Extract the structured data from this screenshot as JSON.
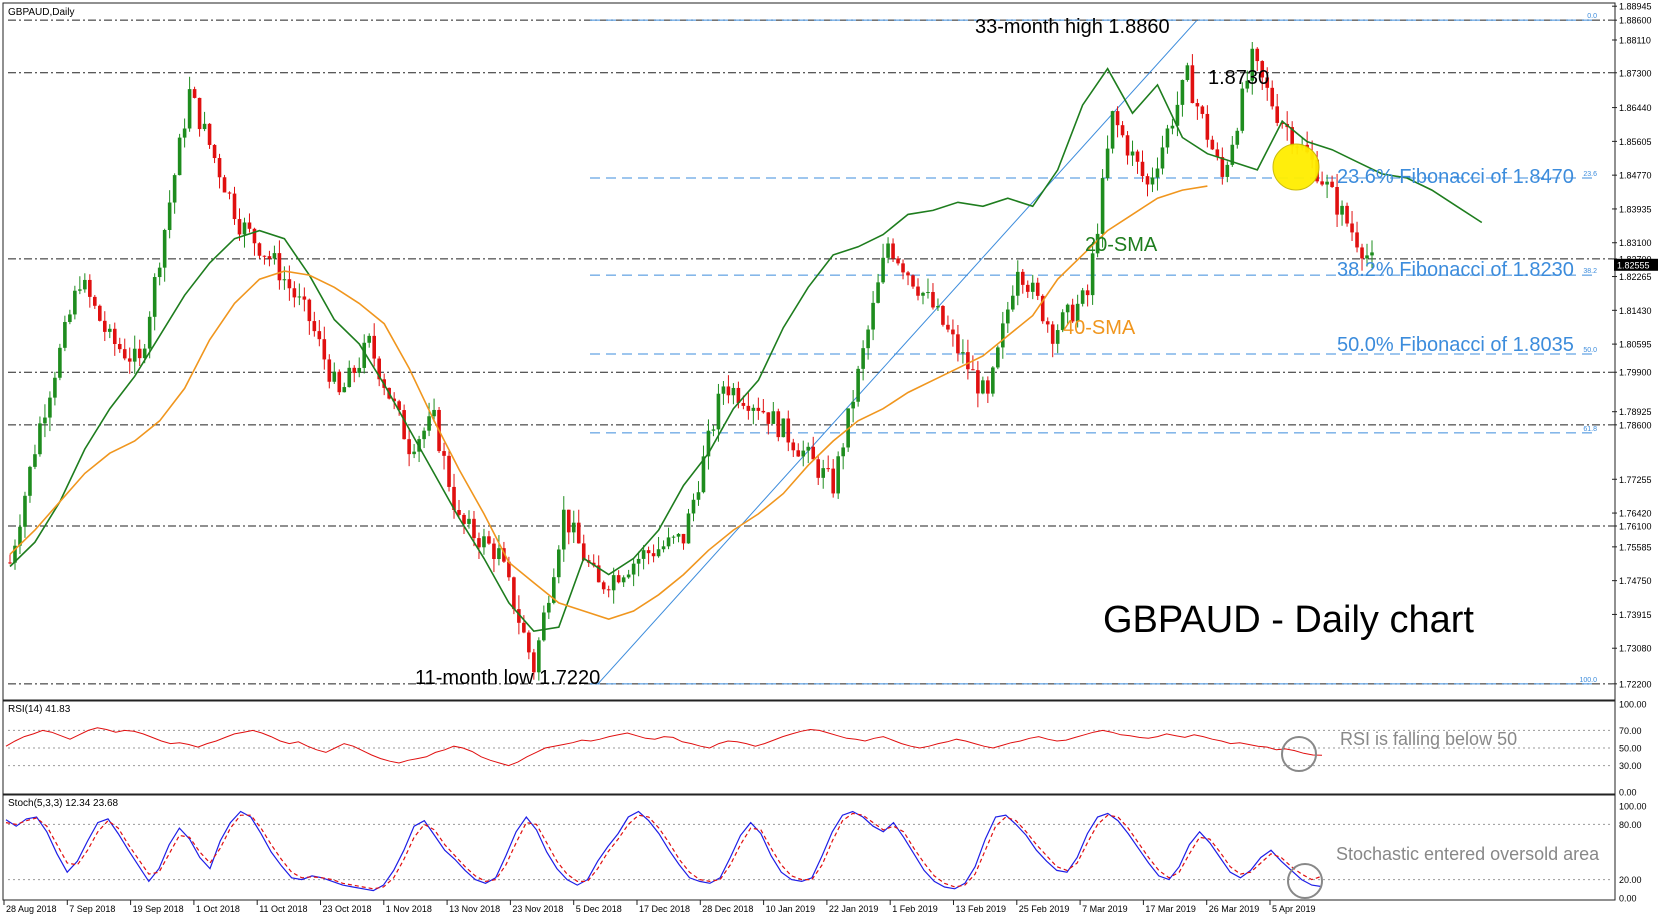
{
  "window": {
    "title": "GBPAUD,Daily"
  },
  "colors": {
    "bull": "#1e8c1e",
    "bear": "#e01010",
    "sma20": "#1e7d1e",
    "sma40": "#f0961e",
    "fib": "#3c8cdc",
    "rsi": "#e01010",
    "stoch_main": "#1e1ee6",
    "stoch_signal": "#e01010",
    "highlight": "#ffee00"
  },
  "chart_data": [
    {
      "type": "candlestick",
      "symbol": "GBPAUD",
      "timeframe": "Daily",
      "header": "GBPAUD,Daily",
      "title": "GBPAUD - Daily chart",
      "ylim": [
        1.7185,
        1.8895
      ],
      "y_ticks": [
        "1.88945",
        "1.88600",
        "1.88110",
        "1.87300",
        "1.86440",
        "1.85605",
        "1.84770",
        "1.83935",
        "1.83100",
        "1.82700",
        "1.82265",
        "1.81430",
        "1.80595",
        "1.79900",
        "1.78925",
        "1.78600",
        "1.77255",
        "1.76420",
        "1.76100",
        "1.75585",
        "1.74750",
        "1.73915",
        "1.73080",
        "1.72200"
      ],
      "x_labels": [
        "28 Aug 2018",
        "7 Sep 2018",
        "19 Sep 2018",
        "1 Oct 2018",
        "11 Oct 2018",
        "23 Oct 2018",
        "1 Nov 2018",
        "13 Nov 2018",
        "23 Nov 2018",
        "5 Dec 2018",
        "17 Dec 2018",
        "28 Dec 2018",
        "10 Jan 2019",
        "22 Jan 2019",
        "1 Feb 2019",
        "13 Feb 2019",
        "25 Feb 2019",
        "7 Mar 2019",
        "17 Mar 2019",
        "26 Mar 2019",
        "5 Apr 2019"
      ],
      "current_price": "1.82555",
      "horizontal_levels": [
        1.886,
        1.873,
        1.827,
        1.799,
        1.786,
        1.761,
        1.722
      ],
      "fibonacci": [
        {
          "level": "0.0",
          "price": 1.886
        },
        {
          "level": "23.6",
          "price": 1.847
        },
        {
          "level": "38.2",
          "price": 1.823
        },
        {
          "level": "50.0",
          "price": 1.8035
        },
        {
          "level": "61.8",
          "price": 1.784
        },
        {
          "level": "100.0",
          "price": 1.722
        }
      ],
      "annotations": {
        "high": "33-month high 1.8860",
        "level_1873": "1.8730",
        "low": "11-month low 1.7220",
        "fib236": "23.6% Fibonacci of 1.8470",
        "fib382": "38.2% Fibonacci of 1.8230",
        "fib50": "50.0% Fibonacci of 1.8035",
        "sma20": "20-SMA",
        "sma40": "40-SMA"
      },
      "series": [
        {
          "name": "20-SMA",
          "values": [
            [
              0,
              1.751
            ],
            [
              5,
              1.757
            ],
            [
              10,
              1.767
            ],
            [
              15,
              1.78
            ],
            [
              20,
              1.79
            ],
            [
              25,
              1.798
            ],
            [
              30,
              1.808
            ],
            [
              35,
              1.818
            ],
            [
              40,
              1.826
            ],
            [
              45,
              1.832
            ],
            [
              50,
              1.834
            ],
            [
              55,
              1.832
            ],
            [
              60,
              1.823
            ],
            [
              65,
              1.812
            ],
            [
              70,
              1.806
            ],
            [
              75,
              1.796
            ],
            [
              80,
              1.785
            ],
            [
              85,
              1.774
            ],
            [
              90,
              1.763
            ],
            [
              95,
              1.753
            ],
            [
              100,
              1.742
            ],
            [
              105,
              1.735
            ],
            [
              110,
              1.736
            ],
            [
              115,
              1.753
            ],
            [
              120,
              1.749
            ],
            [
              125,
              1.753
            ],
            [
              130,
              1.76
            ],
            [
              135,
              1.771
            ],
            [
              140,
              1.779
            ],
            [
              145,
              1.79
            ],
            [
              150,
              1.797
            ],
            [
              155,
              1.81
            ],
            [
              160,
              1.82
            ],
            [
              165,
              1.828
            ],
            [
              170,
              1.83
            ],
            [
              175,
              1.833
            ],
            [
              180,
              1.838
            ],
            [
              185,
              1.839
            ],
            [
              190,
              1.841
            ],
            [
              195,
              1.84
            ],
            [
              200,
              1.842
            ],
            [
              205,
              1.84
            ],
            [
              210,
              1.849
            ],
            [
              215,
              1.865
            ],
            [
              220,
              1.874
            ],
            [
              225,
              1.863
            ],
            [
              230,
              1.87
            ],
            [
              235,
              1.857
            ],
            [
              240,
              1.853
            ],
            [
              245,
              1.851
            ],
            [
              250,
              1.849
            ],
            [
              255,
              1.861
            ],
            [
              260,
              1.856
            ],
            [
              265,
              1.854
            ],
            [
              270,
              1.851
            ],
            [
              275,
              1.848
            ],
            [
              280,
              1.847
            ],
            [
              285,
              1.844
            ],
            [
              290,
              1.84
            ],
            [
              295,
              1.836
            ]
          ]
        },
        {
          "name": "40-SMA",
          "values": [
            [
              0,
              1.754
            ],
            [
              5,
              1.76
            ],
            [
              10,
              1.767
            ],
            [
              15,
              1.774
            ],
            [
              20,
              1.779
            ],
            [
              25,
              1.782
            ],
            [
              30,
              1.787
            ],
            [
              35,
              1.795
            ],
            [
              40,
              1.807
            ],
            [
              45,
              1.816
            ],
            [
              50,
              1.822
            ],
            [
              55,
              1.824
            ],
            [
              60,
              1.823
            ],
            [
              65,
              1.82
            ],
            [
              70,
              1.816
            ],
            [
              75,
              1.811
            ],
            [
              80,
              1.8
            ],
            [
              85,
              1.787
            ],
            [
              90,
              1.775
            ],
            [
              95,
              1.764
            ],
            [
              100,
              1.752
            ],
            [
              105,
              1.747
            ],
            [
              110,
              1.742
            ],
            [
              115,
              1.74
            ],
            [
              120,
              1.738
            ],
            [
              125,
              1.74
            ],
            [
              130,
              1.744
            ],
            [
              135,
              1.749
            ],
            [
              140,
              1.755
            ],
            [
              145,
              1.76
            ],
            [
              150,
              1.764
            ],
            [
              155,
              1.769
            ],
            [
              160,
              1.776
            ],
            [
              165,
              1.782
            ],
            [
              170,
              1.787
            ],
            [
              175,
              1.79
            ],
            [
              180,
              1.794
            ],
            [
              185,
              1.797
            ],
            [
              190,
              1.8
            ],
            [
              195,
              1.803
            ],
            [
              200,
              1.808
            ],
            [
              205,
              1.813
            ],
            [
              210,
              1.822
            ],
            [
              215,
              1.828
            ],
            [
              220,
              1.834
            ],
            [
              225,
              1.838
            ],
            [
              230,
              1.842
            ],
            [
              235,
              1.844
            ],
            [
              240,
              1.845
            ]
          ]
        }
      ]
    },
    {
      "type": "line",
      "name": "RSI(14)",
      "header": "RSI(14) 41.83",
      "ylim": [
        0,
        100
      ],
      "y_ticks": [
        "100.00",
        "70.00",
        "50.00",
        "30.00",
        "0.00"
      ],
      "annotation": "RSI is falling below 50",
      "values": [
        52,
        58,
        63,
        66,
        70,
        68,
        64,
        60,
        65,
        70,
        73,
        71,
        68,
        70,
        69,
        66,
        62,
        58,
        55,
        56,
        54,
        51,
        55,
        58,
        62,
        66,
        68,
        70,
        67,
        63,
        58,
        55,
        57,
        52,
        48,
        45,
        50,
        55,
        52,
        47,
        42,
        38,
        35,
        33,
        36,
        38,
        40,
        45,
        48,
        52,
        50,
        46,
        40,
        36,
        33,
        30,
        34,
        40,
        45,
        50,
        52,
        54,
        56,
        59,
        58,
        60,
        63,
        65,
        67,
        64,
        61,
        60,
        63,
        62,
        57,
        55,
        52,
        50,
        55,
        58,
        57,
        55,
        52,
        55,
        59,
        63,
        66,
        69,
        71,
        70,
        67,
        64,
        61,
        60,
        58,
        61,
        63,
        59,
        55,
        52,
        50,
        52,
        55,
        57,
        60,
        58,
        55,
        52,
        50,
        53,
        56,
        58,
        61,
        63,
        60,
        58,
        59,
        62,
        65,
        68,
        70,
        68,
        65,
        64,
        62,
        61,
        63,
        66,
        64,
        62,
        65,
        63,
        60,
        58,
        55,
        56,
        54,
        52,
        51,
        48,
        49,
        47,
        44,
        42,
        41.83
      ]
    },
    {
      "type": "line",
      "name": "Stoch(5,3,3)",
      "header": "Stoch(5,3,3) 12.34 23.68",
      "ylim": [
        0,
        100
      ],
      "y_ticks": [
        "100.00",
        "80.00",
        "20.00",
        "0.00"
      ],
      "annotation": "Stochastic entered oversold area",
      "series": [
        {
          "name": "main",
          "values": [
            85,
            78,
            86,
            88,
            72,
            48,
            28,
            40,
            62,
            82,
            86,
            70,
            52,
            35,
            18,
            32,
            58,
            76,
            64,
            44,
            32,
            62,
            82,
            94,
            88,
            70,
            50,
            35,
            22,
            20,
            24,
            22,
            18,
            14,
            12,
            10,
            8,
            14,
            30,
            52,
            78,
            84,
            68,
            52,
            42,
            30,
            20,
            16,
            22,
            46,
            72,
            88,
            74,
            50,
            32,
            20,
            14,
            20,
            40,
            56,
            70,
            88,
            94,
            84,
            70,
            52,
            36,
            22,
            18,
            16,
            22,
            44,
            68,
            82,
            70,
            46,
            28,
            20,
            18,
            22,
            46,
            72,
            90,
            94,
            88,
            78,
            72,
            82,
            66,
            48,
            30,
            18,
            12,
            10,
            16,
            34,
            64,
            88,
            90,
            80,
            68,
            52,
            40,
            30,
            28,
            44,
            70,
            88,
            92,
            84,
            70,
            54,
            38,
            24,
            20,
            34,
            58,
            72,
            60,
            44,
            28,
            22,
            30,
            44,
            52,
            40,
            30,
            20,
            14,
            12.34
          ]
        },
        {
          "name": "signal",
          "values": [
            82,
            80,
            84,
            87,
            78,
            58,
            38,
            36,
            52,
            72,
            84,
            76,
            58,
            42,
            26,
            28,
            48,
            68,
            66,
            50,
            38,
            54,
            76,
            90,
            90,
            76,
            58,
            42,
            28,
            22,
            23,
            22,
            20,
            16,
            14,
            12,
            10,
            12,
            22,
            42,
            66,
            80,
            74,
            58,
            46,
            34,
            24,
            18,
            20,
            36,
            60,
            82,
            80,
            60,
            40,
            26,
            18,
            18,
            32,
            50,
            64,
            80,
            90,
            88,
            76,
            60,
            42,
            28,
            20,
            18,
            20,
            36,
            58,
            76,
            74,
            54,
            36,
            24,
            20,
            20,
            36,
            62,
            84,
            92,
            90,
            82,
            74,
            78,
            72,
            54,
            38,
            24,
            16,
            12,
            14,
            26,
            52,
            78,
            88,
            84,
            72,
            58,
            46,
            34,
            30,
            38,
            60,
            80,
            90,
            88,
            76,
            60,
            44,
            30,
            22,
            28,
            48,
            66,
            64,
            50,
            34,
            26,
            28,
            38,
            48,
            44,
            34,
            26,
            20,
            23.68
          ]
        }
      ]
    }
  ]
}
